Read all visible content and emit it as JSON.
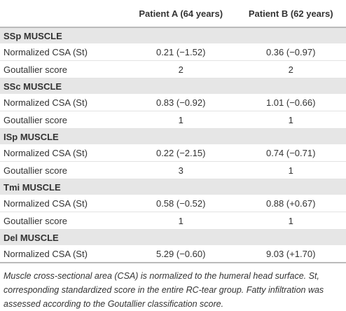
{
  "table": {
    "columns": [
      "Patient A (64 years)",
      "Patient B (62 years)"
    ],
    "sections": [
      {
        "title": "SSp MUSCLE",
        "rows": [
          {
            "label": "Normalized CSA (St)",
            "values": [
              "0.21 (−1.52)",
              "0.36 (−0.97)"
            ]
          },
          {
            "label": "Goutallier score",
            "values": [
              2,
              2
            ]
          }
        ]
      },
      {
        "title": "SSc MUSCLE",
        "rows": [
          {
            "label": "Normalized CSA (St)",
            "values": [
              "0.83 (−0.92)",
              "1.01 (−0.66)"
            ]
          },
          {
            "label": "Goutallier score",
            "values": [
              1,
              1
            ]
          }
        ]
      },
      {
        "title": "ISp MUSCLE",
        "rows": [
          {
            "label": "Normalized CSA (St)",
            "values": [
              "0.22 (−2.15)",
              "0.74 (−0.71)"
            ]
          },
          {
            "label": "Goutallier score",
            "values": [
              3,
              1
            ]
          }
        ]
      },
      {
        "title": "Tmi MUSCLE",
        "rows": [
          {
            "label": "Normalized CSA (St)",
            "values": [
              "0.58 (−0.52)",
              "0.88 (+0.67)"
            ]
          },
          {
            "label": "Goutallier score",
            "values": [
              1,
              1
            ]
          }
        ]
      },
      {
        "title": "Del MUSCLE",
        "rows": [
          {
            "label": "Normalized CSA (St)",
            "values": [
              "5.29 (−0.60)",
              "9.03 (+1.70)"
            ]
          }
        ]
      }
    ],
    "footnote": "Muscle cross-sectional area (CSA) is normalized to the humeral head surface. St, corresponding standardized score in the entire RC-tear group. Fatty infiltration was assessed according to the Goutallier classification score."
  }
}
